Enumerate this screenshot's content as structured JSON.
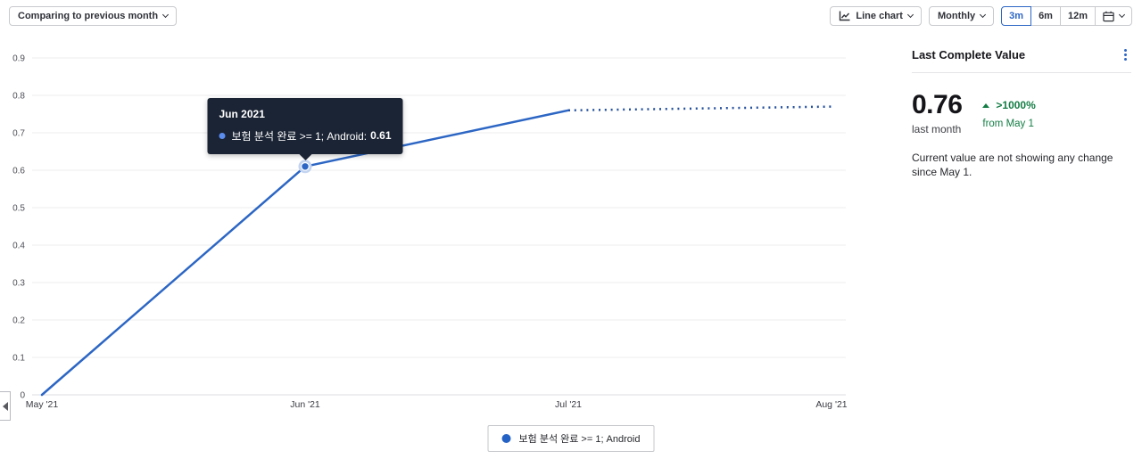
{
  "toolbar": {
    "comparison_label": "Comparing to previous month",
    "chart_type_label": "Line chart",
    "interval_label": "Monthly",
    "range_3m": "3m",
    "range_6m": "6m",
    "range_12m": "12m",
    "selected_range": "3m"
  },
  "chart_data": {
    "type": "line",
    "title": "",
    "categories": [
      "May '21",
      "Jun '21",
      "Jul '21",
      "Aug '21"
    ],
    "y_ticks": [
      "0",
      "0.1",
      "0.2",
      "0.3",
      "0.4",
      "0.5",
      "0.6",
      "0.7",
      "0.8",
      "0.9"
    ],
    "ylim": [
      0,
      0.9
    ],
    "grid": "horizontal",
    "legend_position": "bottom",
    "series": [
      {
        "name": "보험 분석 완료 >= 1; Android",
        "color": "#2c66c4",
        "values": [
          0,
          0.61,
          0.76,
          0.77
        ],
        "dotted_from_index": 2
      }
    ],
    "highlighted_point": {
      "index": 1,
      "category": "Jun '21",
      "value": 0.61
    }
  },
  "tooltip": {
    "title": "Jun 2021",
    "series_label": "보험 분석 완료 >= 1; Android:",
    "value": "0.61"
  },
  "legend": {
    "label": "보험 분석 완료 >= 1; Android"
  },
  "panel": {
    "title": "Last Complete Value",
    "value": "0.76",
    "value_caption": "last month",
    "change_pct": ">1000%",
    "change_from": "from May 1",
    "note": "Current value are not showing any change since May 1."
  },
  "colors": {
    "line": "#2c66c4",
    "dotted_projection": "#24509c",
    "positive_green": "#147d45",
    "accent_blue": "#2c66c4",
    "tooltip_bg": "#1b2434",
    "grid": "#ececef"
  }
}
